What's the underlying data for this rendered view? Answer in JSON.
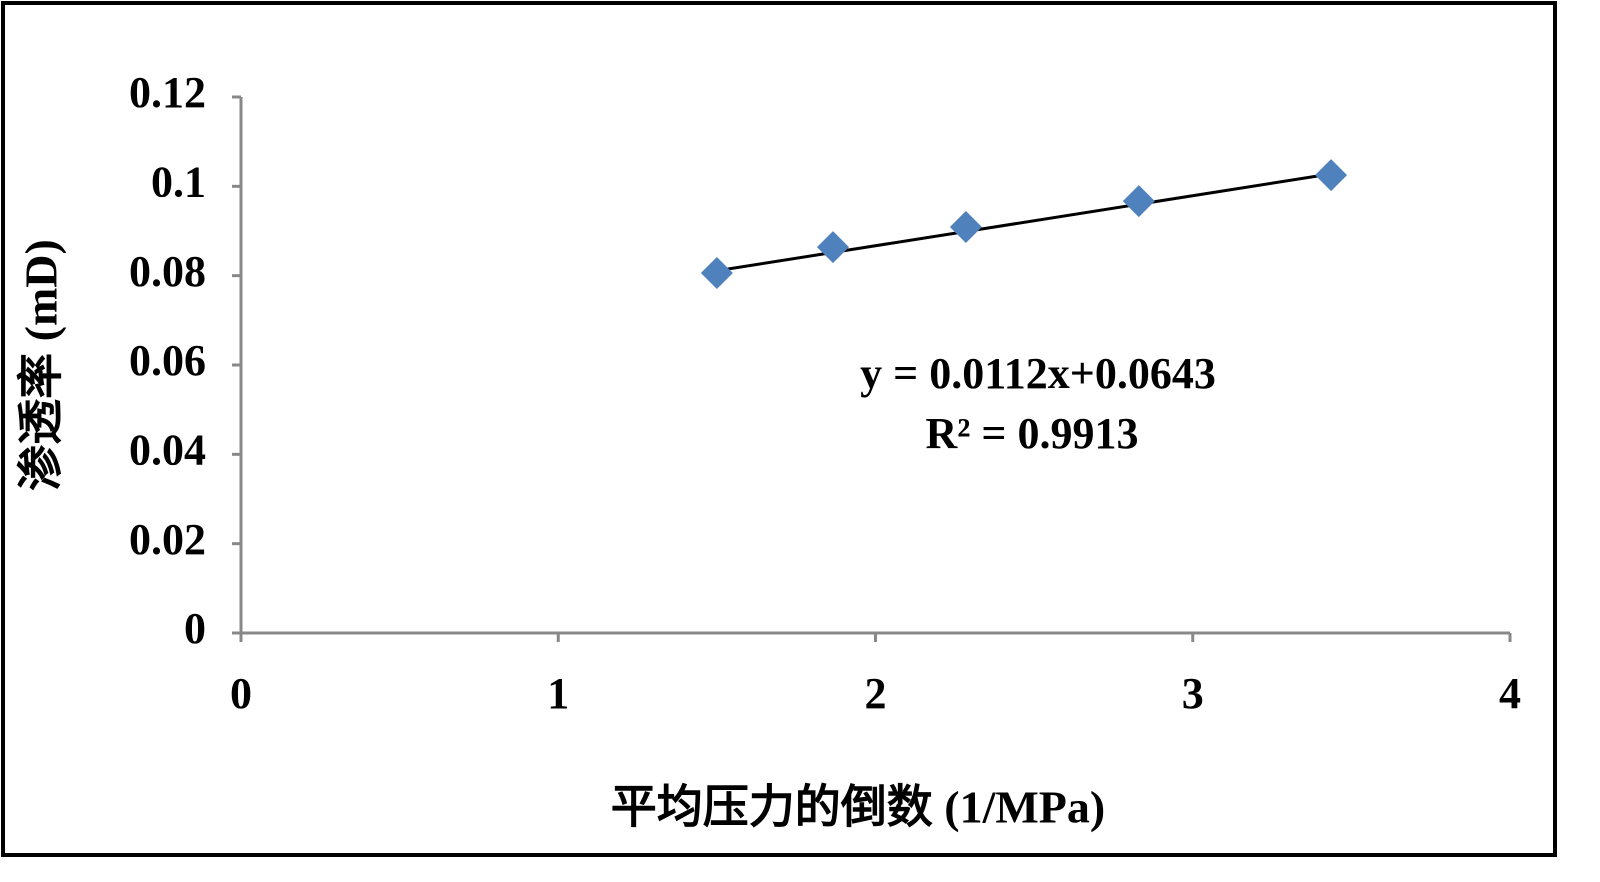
{
  "chart_data": {
    "type": "scatter",
    "xlabel": "平均压力的倒数 (1/MPa)",
    "ylabel": "渗透率 (mD)",
    "x": [
      1.5,
      1.866,
      2.285,
      2.83,
      3.436
    ],
    "series": [
      {
        "color": "#4f81bd",
        "values": [
          0.0806,
          0.0864,
          0.0909,
          0.0967,
          0.1025
        ]
      }
    ],
    "trendline": {
      "slope": 0.0112,
      "intercept": 0.0643,
      "color": "#000000",
      "equation": "y = 0.0112x+0.0643",
      "r2_label": "R² = 0.9913"
    },
    "xlim": [
      0,
      4
    ],
    "xticks": [
      0,
      1,
      2,
      3,
      4
    ],
    "ylim": [
      0,
      0.12
    ],
    "yticks": [
      0,
      0.02,
      0.04,
      0.06,
      0.08,
      0.1,
      0.12
    ]
  }
}
